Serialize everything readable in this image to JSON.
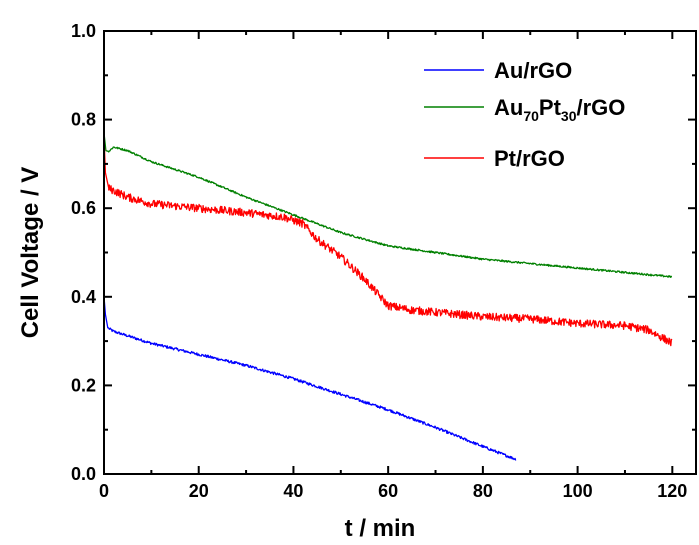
{
  "chart_data": {
    "type": "line",
    "title": "",
    "xlabel": "t / min",
    "ylabel": "Cell Voltage / V",
    "xlim": [
      0,
      125
    ],
    "ylim": [
      0,
      1.0
    ],
    "xticks": [
      "0",
      "20",
      "40",
      "60",
      "80",
      "100",
      "120"
    ],
    "yticks": [
      "0.0",
      "0.2",
      "0.4",
      "0.6",
      "0.8",
      "1.0"
    ],
    "grid": false,
    "legend_position": "top-right",
    "series": [
      {
        "name": "Au/rGO",
        "legend_main": "Au/rGO",
        "color": "#0000ff",
        "noise": 0.003,
        "points": [
          [
            0,
            0.4
          ],
          [
            0.3,
            0.36
          ],
          [
            0.8,
            0.33
          ],
          [
            2,
            0.322
          ],
          [
            10,
            0.295
          ],
          [
            20,
            0.27
          ],
          [
            30,
            0.245
          ],
          [
            40,
            0.215
          ],
          [
            50,
            0.18
          ],
          [
            60,
            0.145
          ],
          [
            70,
            0.105
          ],
          [
            80,
            0.062
          ],
          [
            87,
            0.033
          ]
        ]
      },
      {
        "name": "Au70Pt30/rGO",
        "legend_parts": [
          "Au",
          "70",
          "Pt",
          "30",
          "/rGO"
        ],
        "color": "#008000",
        "noise": 0.002,
        "points": [
          [
            0,
            0.77
          ],
          [
            0.4,
            0.73
          ],
          [
            1,
            0.728
          ],
          [
            2,
            0.738
          ],
          [
            5,
            0.73
          ],
          [
            10,
            0.705
          ],
          [
            20,
            0.67
          ],
          [
            30,
            0.625
          ],
          [
            40,
            0.585
          ],
          [
            50,
            0.545
          ],
          [
            60,
            0.515
          ],
          [
            70,
            0.5
          ],
          [
            80,
            0.485
          ],
          [
            90,
            0.475
          ],
          [
            100,
            0.465
          ],
          [
            110,
            0.455
          ],
          [
            120,
            0.445
          ]
        ]
      },
      {
        "name": "Pt/rGO",
        "legend_main": "Pt/rGO",
        "color": "#ff0000",
        "noise": 0.009,
        "points": [
          [
            0,
            0.76
          ],
          [
            0.3,
            0.68
          ],
          [
            1,
            0.645
          ],
          [
            5,
            0.625
          ],
          [
            10,
            0.61
          ],
          [
            20,
            0.6
          ],
          [
            30,
            0.59
          ],
          [
            38,
            0.58
          ],
          [
            42,
            0.565
          ],
          [
            45,
            0.53
          ],
          [
            50,
            0.49
          ],
          [
            55,
            0.44
          ],
          [
            60,
            0.38
          ],
          [
            65,
            0.37
          ],
          [
            70,
            0.365
          ],
          [
            80,
            0.355
          ],
          [
            90,
            0.35
          ],
          [
            100,
            0.34
          ],
          [
            110,
            0.335
          ],
          [
            115,
            0.325
          ],
          [
            120,
            0.295
          ]
        ]
      }
    ]
  }
}
